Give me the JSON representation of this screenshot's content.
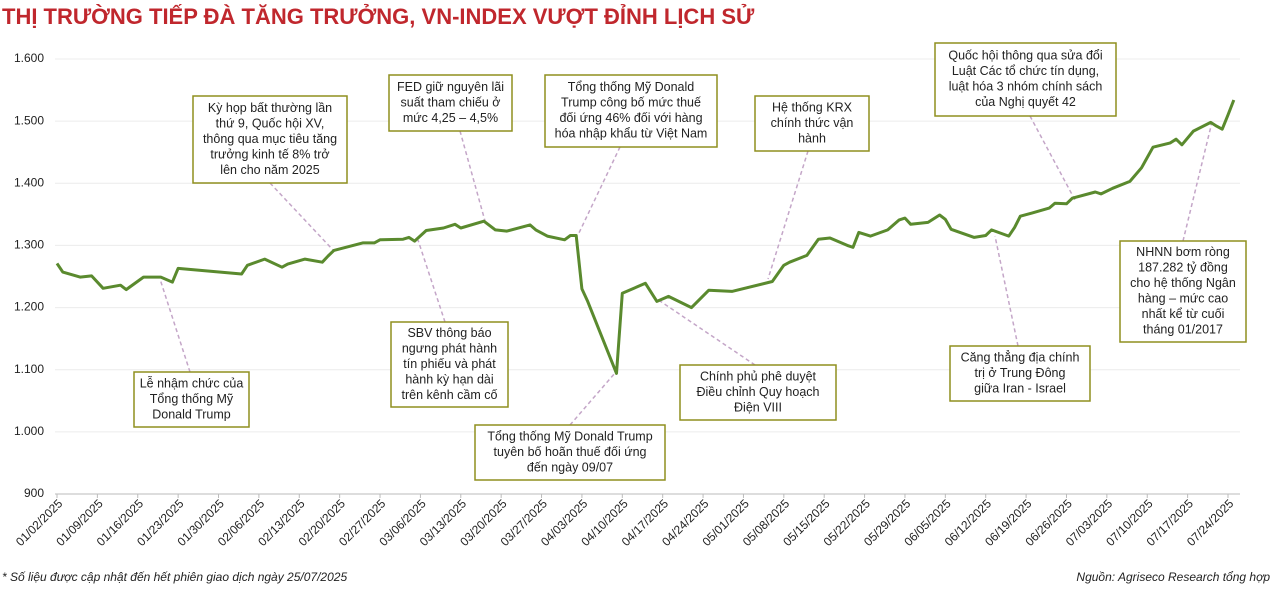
{
  "chart_data": {
    "type": "line",
    "title": "THỊ TRƯỜNG TIẾP ĐÀ TĂNG TRƯỞNG, VN-INDEX VƯỢT ĐỈNH LỊCH SỬ",
    "note": "* Số liệu được cập nhật đến hết phiên giao dịch ngày 25/07/2025",
    "source": "Nguồn: Agriseco Research tổng hợp",
    "grid": true,
    "color": "#5a8a2e",
    "ylim": [
      900,
      1600
    ],
    "yticks": [
      900,
      {
        "value": 1000,
        "label": "1.000"
      },
      {
        "value": 1100,
        "label": "1.100"
      },
      {
        "value": 1200,
        "label": "1.200"
      },
      {
        "value": 1300,
        "label": "1.300"
      },
      {
        "value": 1400,
        "label": "1.400"
      },
      {
        "value": 1500,
        "label": "1.500"
      },
      {
        "value": 1600,
        "label": "1.600"
      }
    ],
    "xlim": [
      "01/02/2025",
      "07/24/2025"
    ],
    "xticks": [
      "01/02/2025",
      "01/09/2025",
      "01/16/2025",
      "01/23/2025",
      "01/30/2025",
      "02/06/2025",
      "02/13/2025",
      "02/20/2025",
      "02/27/2025",
      "03/06/2025",
      "03/13/2025",
      "03/20/2025",
      "03/27/2025",
      "04/03/2025",
      "04/10/2025",
      "04/17/2025",
      "04/24/2025",
      "05/01/2025",
      "05/08/2025",
      "05/15/2025",
      "05/22/2025",
      "05/29/2025",
      "06/05/2025",
      "06/12/2025",
      "06/19/2025",
      "06/26/2025",
      "07/03/2025",
      "07/10/2025",
      "07/17/2025",
      "07/24/2025"
    ],
    "x": [
      "01/02/2025",
      "01/03/2025",
      "01/06/2025",
      "01/08/2025",
      "01/10/2025",
      "01/13/2025",
      "01/14/2025",
      "01/17/2025",
      "01/20/2025",
      "01/22/2025",
      "01/23/2025",
      "02/03/2025",
      "02/04/2025",
      "02/07/2025",
      "02/10/2025",
      "02/11/2025",
      "02/14/2025",
      "02/17/2025",
      "02/18/2025",
      "02/19/2025",
      "02/24/2025",
      "02/26/2025",
      "02/27/2025",
      "03/03/2025",
      "03/04/2025",
      "03/05/2025",
      "03/07/2025",
      "03/10/2025",
      "03/12/2025",
      "03/13/2025",
      "03/17/2025",
      "03/19/2025",
      "03/21/2025",
      "03/25/2025",
      "03/26/2025",
      "03/28/2025",
      "03/31/2025",
      "04/01/2025",
      "04/02/2025",
      "04/03/2025",
      "04/04/2025",
      "04/09/2025",
      "04/10/2025",
      "04/14/2025",
      "04/16/2025",
      "04/18/2025",
      "04/22/2025",
      "04/25/2025",
      "04/29/2025",
      "05/06/2025",
      "05/08/2025",
      "05/09/2025",
      "05/12/2025",
      "05/14/2025",
      "05/16/2025",
      "05/19/2025",
      "05/20/2025",
      "05/21/2025",
      "05/23/2025",
      "05/26/2025",
      "05/28/2025",
      "05/29/2025",
      "05/30/2025",
      "06/02/2025",
      "06/04/2025",
      "06/05/2025",
      "06/06/2025",
      "06/10/2025",
      "06/12/2025",
      "06/13/2025",
      "06/16/2025",
      "06/17/2025",
      "06/18/2025",
      "06/20/2025",
      "06/23/2025",
      "06/24/2025",
      "06/26/2025",
      "06/27/2025",
      "07/01/2025",
      "07/02/2025",
      "07/04/2025",
      "07/07/2025",
      "07/09/2025",
      "07/11/2025",
      "07/14/2025",
      "07/15/2025",
      "07/16/2025",
      "07/18/2025",
      "07/21/2025",
      "07/22/2025",
      "07/23/2025",
      "07/24/2025",
      "07/25/2025"
    ],
    "series": [
      {
        "color": "#5a8a2e",
        "values": [
          1271,
          1257,
          1249,
          1251,
          1231,
          1236,
          1229,
          1249,
          1249,
          1241,
          1263,
          1254,
          1268,
          1278,
          1265,
          1270,
          1278,
          1273,
          1283,
          1292,
          1304,
          1304,
          1309,
          1310,
          1313,
          1307,
          1324,
          1328,
          1334,
          1328,
          1339,
          1325,
          1323,
          1333,
          1325,
          1315,
          1309,
          1316,
          1316,
          1230,
          1210,
          1094,
          1223,
          1239,
          1210,
          1218,
          1200,
          1228,
          1226,
          1242,
          1268,
          1273,
          1284,
          1310,
          1312,
          1300,
          1297,
          1321,
          1315,
          1325,
          1341,
          1344,
          1334,
          1337,
          1349,
          1342,
          1326,
          1313,
          1316,
          1325,
          1315,
          1329,
          1347,
          1352,
          1360,
          1368,
          1367,
          1376,
          1386,
          1383,
          1392,
          1403,
          1425,
          1458,
          1465,
          1471,
          1462,
          1484,
          1498,
          1492,
          1487,
          1510,
          1534
        ]
      }
    ],
    "annotations": [
      {
        "lines": [
          "Kỳ họp bất thường lần",
          "thứ 9, Quốc hội XV,",
          "thông qua mục tiêu tăng",
          "trưởng kinh tế 8% trở",
          "lên cho năm 2025"
        ]
      },
      {
        "lines": [
          "FED giữ nguyên lãi",
          "suất tham chiếu ở",
          "mức 4,25 – 4,5%"
        ]
      },
      {
        "lines": [
          "Tổng thống Mỹ Donald",
          "Trump công bố mức thuế",
          "đối ứng 46% đối với hàng",
          "hóa nhập khẩu từ Việt Nam"
        ]
      },
      {
        "lines": [
          "Hệ thống KRX",
          "chính thức vận",
          "hành"
        ]
      },
      {
        "lines": [
          "Quốc hội thông qua sửa đổi",
          "Luật Các tổ chức tín dụng,",
          "luật hóa 3 nhóm chính sách",
          "của Nghị quyết 42"
        ]
      },
      {
        "lines": [
          "NHNN bơm ròng",
          "187.282 tỷ đồng",
          "cho hệ thống Ngân",
          "hàng – mức cao",
          "nhất kể từ cuối",
          "tháng 01/2017"
        ]
      },
      {
        "lines": [
          "Lễ nhậm chức của",
          "Tổng thống Mỹ",
          "Donald Trump"
        ]
      },
      {
        "lines": [
          "SBV thông báo",
          "ngưng phát hành",
          "tín phiếu và phát",
          "hành kỳ hạn dài",
          "trên kênh cầm cố"
        ]
      },
      {
        "lines": [
          "Tổng thống Mỹ Donald Trump",
          "tuyên bố hoãn thuế đối ứng",
          "đến ngày 09/07"
        ]
      },
      {
        "lines": [
          "Chính phủ phê duyệt",
          "Điều chỉnh Quy hoạch",
          "Điện VIII"
        ]
      },
      {
        "lines": [
          "Căng thẳng địa chính",
          "trị ở Trung Đông",
          "giữa Iran - Israel"
        ]
      }
    ]
  }
}
